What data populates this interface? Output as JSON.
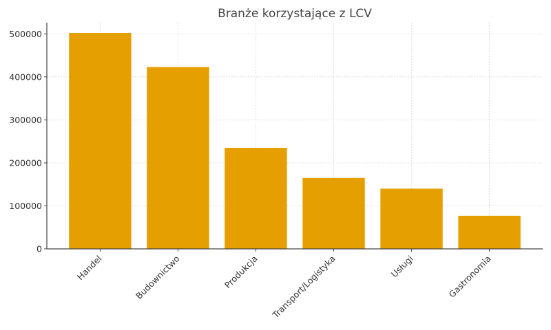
{
  "chart_data": {
    "type": "bar",
    "title": "Branże korzystające z LCV",
    "xlabel": "",
    "ylabel": "",
    "categories": [
      "Handel",
      "Budownictwo",
      "Produkcja",
      "Transport/Logistyka",
      "Usługi",
      "Gastronomia"
    ],
    "values": [
      502000,
      423000,
      235000,
      165000,
      140000,
      77000
    ],
    "ylim": [
      0,
      526000
    ],
    "yticks": [
      0,
      100000,
      200000,
      300000,
      400000,
      500000
    ],
    "ytick_labels": [
      "0",
      "100000",
      "200000",
      "300000",
      "400000",
      "500000"
    ],
    "grid": true,
    "bar_color": "#E69F00"
  }
}
